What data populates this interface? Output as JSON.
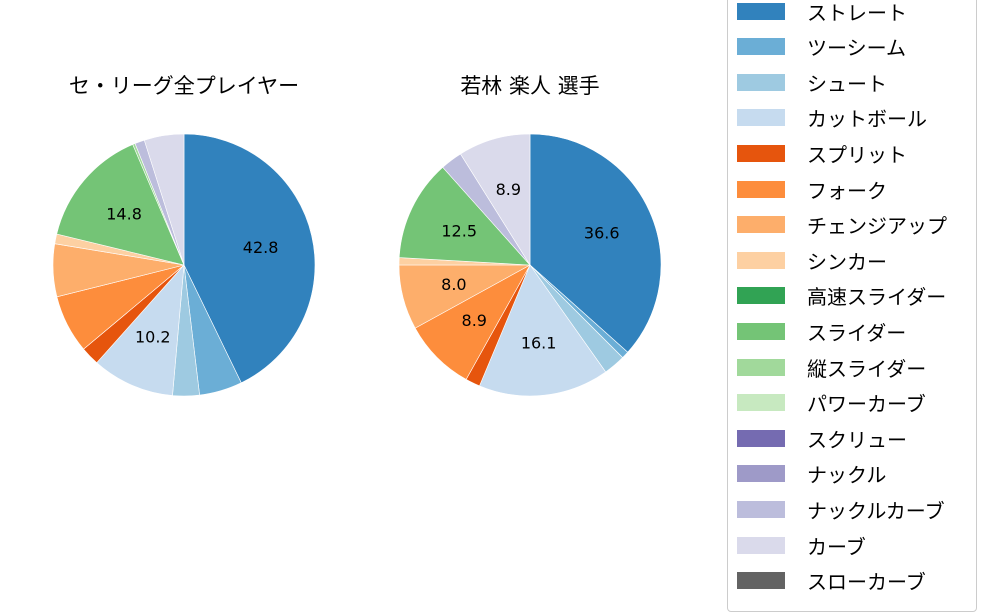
{
  "chart_data": [
    {
      "type": "pie",
      "title": "セ・リーグ全プレイヤー",
      "start_angle": 90,
      "direction": "clockwise",
      "categories": [
        "ストレート",
        "ツーシーム",
        "シュート",
        "カットボール",
        "スプリット",
        "フォーク",
        "チェンジアップ",
        "シンカー",
        "スライダー",
        "縦スライダー",
        "ナックルカーブ",
        "カーブ"
      ],
      "values": [
        42.8,
        5.3,
        3.3,
        10.2,
        2.3,
        7.2,
        6.5,
        1.2,
        14.8,
        0.3,
        1.2,
        4.9
      ],
      "labels": [
        "42.8",
        "",
        "",
        "10.2",
        "",
        "",
        "",
        "",
        "14.8",
        "",
        "",
        ""
      ]
    },
    {
      "type": "pie",
      "title": "若林 楽人  選手",
      "start_angle": 90,
      "direction": "clockwise",
      "categories": [
        "ストレート",
        "ツーシーム",
        "シュート",
        "カットボール",
        "スプリット",
        "フォーク",
        "チェンジアップ",
        "シンカー",
        "スライダー",
        "ナックルカーブ",
        "カーブ"
      ],
      "values": [
        36.6,
        0.9,
        2.7,
        16.1,
        1.8,
        8.9,
        8.0,
        0.9,
        12.5,
        2.7,
        8.9
      ],
      "labels": [
        "36.6",
        "",
        "",
        "16.1",
        "",
        "8.9",
        "8.0",
        "",
        "12.5",
        "",
        "8.9"
      ]
    }
  ],
  "colors": {
    "ストレート": "#3182bd",
    "ツーシーム": "#6baed6",
    "シュート": "#9ecae1",
    "カットボール": "#c6dbef",
    "スプリット": "#e6550d",
    "フォーク": "#fd8d3c",
    "チェンジアップ": "#fdae6b",
    "シンカー": "#fdd0a2",
    "高速スライダー": "#31a354",
    "スライダー": "#74c476",
    "縦スライダー": "#a1d99b",
    "パワーカーブ": "#c7e9c0",
    "スクリュー": "#756bb1",
    "ナックル": "#9e9ac8",
    "ナックルカーブ": "#bcbddc",
    "カーブ": "#dadaeb",
    "スローカーブ": "#636363"
  },
  "legend": {
    "items": [
      {
        "label": "ストレート",
        "color": "#3182bd"
      },
      {
        "label": "ツーシーム",
        "color": "#6baed6"
      },
      {
        "label": "シュート",
        "color": "#9ecae1"
      },
      {
        "label": "カットボール",
        "color": "#c6dbef"
      },
      {
        "label": "スプリット",
        "color": "#e6550d"
      },
      {
        "label": "フォーク",
        "color": "#fd8d3c"
      },
      {
        "label": "チェンジアップ",
        "color": "#fdae6b"
      },
      {
        "label": "シンカー",
        "color": "#fdd0a2"
      },
      {
        "label": "高速スライダー",
        "color": "#31a354"
      },
      {
        "label": "スライダー",
        "color": "#74c476"
      },
      {
        "label": "縦スライダー",
        "color": "#a1d99b"
      },
      {
        "label": "パワーカーブ",
        "color": "#c7e9c0"
      },
      {
        "label": "スクリュー",
        "color": "#756bb1"
      },
      {
        "label": "ナックル",
        "color": "#9e9ac8"
      },
      {
        "label": "ナックルカーブ",
        "color": "#bcbddc"
      },
      {
        "label": "カーブ",
        "color": "#dadaeb"
      },
      {
        "label": "スローカーブ",
        "color": "#636363"
      }
    ]
  }
}
